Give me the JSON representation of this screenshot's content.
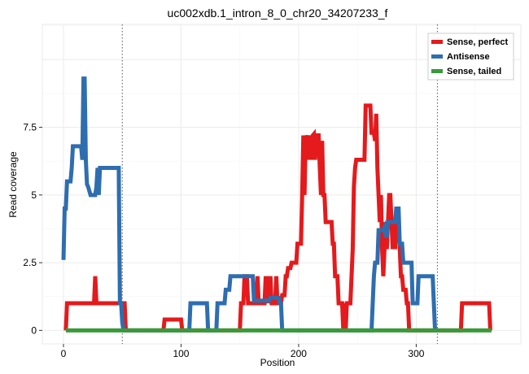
{
  "chart_data": {
    "type": "line",
    "title": "uc002xdb.1_intron_8_0_chr20_34207233_f",
    "xlabel": "Position",
    "ylabel": "Read coverage",
    "xlim": [
      -18,
      389
    ],
    "ylim": [
      -0.5,
      11.3
    ],
    "xticks": [
      0,
      100,
      200,
      300
    ],
    "yticks": [
      0,
      2.5,
      5,
      7.5
    ],
    "ytick_labels": [
      "0",
      "2.5",
      "5",
      "7.5"
    ],
    "grid": true,
    "legend_position": "top-right",
    "vlines": [
      50,
      318
    ],
    "series": [
      {
        "name": "Sense, perfect",
        "color": "#e41a1c",
        "points": [
          [
            2,
            0
          ],
          [
            3,
            1
          ],
          [
            26,
            1
          ],
          [
            27,
            2
          ],
          [
            28,
            1
          ],
          [
            52,
            1
          ],
          [
            53,
            0
          ],
          [
            85,
            0
          ],
          [
            86,
            0.4
          ],
          [
            100,
            0.4
          ],
          [
            101,
            0
          ],
          [
            150,
            0
          ],
          [
            151,
            1
          ],
          [
            153,
            1
          ],
          [
            154,
            2
          ],
          [
            156,
            2
          ],
          [
            157,
            1
          ],
          [
            164,
            1
          ],
          [
            165,
            2
          ],
          [
            166,
            1
          ],
          [
            170,
            1
          ],
          [
            171,
            1
          ],
          [
            172,
            2
          ],
          [
            173,
            1
          ],
          [
            174,
            2
          ],
          [
            175,
            1
          ],
          [
            176,
            2
          ],
          [
            177,
            1
          ],
          [
            180,
            1
          ],
          [
            181,
            2
          ],
          [
            182,
            1
          ],
          [
            185,
            1
          ],
          [
            186,
            1.3
          ],
          [
            188,
            1.3
          ],
          [
            189,
            2
          ],
          [
            190,
            2
          ],
          [
            191,
            2.3
          ],
          [
            193,
            2.3
          ],
          [
            194,
            2.5
          ],
          [
            198,
            2.5
          ],
          [
            199,
            3.2
          ],
          [
            202,
            3.2
          ],
          [
            203,
            5
          ],
          [
            204,
            7.2
          ],
          [
            205,
            5
          ],
          [
            206,
            7.2
          ],
          [
            207,
            7
          ],
          [
            208,
            7.2
          ],
          [
            209,
            6.3
          ],
          [
            210,
            7.2
          ],
          [
            211,
            6.3
          ],
          [
            212,
            7.2
          ],
          [
            213,
            7.25
          ],
          [
            214,
            6.3
          ],
          [
            215,
            7.2
          ],
          [
            217,
            7.2
          ],
          [
            218,
            6
          ],
          [
            219,
            5
          ],
          [
            220,
            7
          ],
          [
            221,
            5
          ],
          [
            222,
            5
          ],
          [
            223,
            4
          ],
          [
            228,
            4
          ],
          [
            229,
            3.2
          ],
          [
            230,
            3.2
          ],
          [
            231,
            2
          ],
          [
            233,
            2
          ],
          [
            234,
            1
          ],
          [
            237,
            1
          ],
          [
            238,
            0
          ],
          [
            239,
            1
          ],
          [
            240,
            0
          ],
          [
            241,
            1
          ],
          [
            244,
            1
          ],
          [
            245,
            2
          ],
          [
            246,
            3
          ],
          [
            247,
            5.3
          ],
          [
            248,
            6
          ],
          [
            249,
            6.3
          ],
          [
            256,
            6.3
          ],
          [
            257,
            8.3
          ],
          [
            261,
            8.3
          ],
          [
            262,
            7.3
          ],
          [
            264,
            7.3
          ],
          [
            265,
            7
          ],
          [
            266,
            8
          ],
          [
            267,
            6
          ],
          [
            268,
            5
          ],
          [
            269,
            4
          ],
          [
            270,
            5
          ],
          [
            271,
            3
          ],
          [
            272,
            2
          ],
          [
            273,
            3
          ],
          [
            274,
            4
          ],
          [
            275,
            3
          ],
          [
            276,
            4
          ],
          [
            277,
            5
          ],
          [
            278,
            5
          ],
          [
            279,
            4
          ],
          [
            280,
            3
          ],
          [
            281,
            4
          ],
          [
            282,
            3
          ],
          [
            283,
            4
          ],
          [
            285,
            4
          ],
          [
            286,
            3
          ],
          [
            287,
            2
          ],
          [
            288,
            2
          ],
          [
            289,
            1.5
          ],
          [
            291,
            1.5
          ],
          [
            292,
            1
          ],
          [
            293,
            1
          ],
          [
            294,
            0
          ],
          [
            338,
            0
          ],
          [
            339,
            1
          ],
          [
            362,
            1
          ],
          [
            363,
            0
          ]
        ]
      },
      {
        "name": "Antisense",
        "color": "#2e6eb0",
        "points": [
          [
            0,
            2.6
          ],
          [
            1,
            4.5
          ],
          [
            2,
            4.5
          ],
          [
            3,
            5.5
          ],
          [
            6,
            5.5
          ],
          [
            7,
            6
          ],
          [
            8,
            6.8
          ],
          [
            15,
            6.8
          ],
          [
            16,
            6.3
          ],
          [
            17,
            9.3
          ],
          [
            18,
            9.3
          ],
          [
            19,
            6.3
          ],
          [
            20,
            5.4
          ],
          [
            21,
            5.3
          ],
          [
            23,
            5
          ],
          [
            27,
            5
          ],
          [
            28,
            5.3
          ],
          [
            29,
            6
          ],
          [
            30,
            5
          ],
          [
            31,
            6
          ],
          [
            47,
            6
          ],
          [
            48,
            1
          ],
          [
            49,
            1
          ],
          [
            50,
            0.3
          ],
          [
            51,
            0
          ],
          [
            107,
            0
          ],
          [
            108,
            1
          ],
          [
            122,
            1
          ],
          [
            123,
            0
          ],
          [
            130,
            0
          ],
          [
            131,
            1
          ],
          [
            137,
            1
          ],
          [
            138,
            1.5
          ],
          [
            140,
            1.5
          ],
          [
            141,
            1.5
          ],
          [
            142,
            2
          ],
          [
            145,
            2
          ],
          [
            146,
            2
          ],
          [
            161,
            2
          ],
          [
            162,
            1.1
          ],
          [
            175,
            1.1
          ],
          [
            176,
            1.2
          ],
          [
            183,
            1.2
          ],
          [
            184,
            1
          ],
          [
            185,
            1
          ],
          [
            186,
            0
          ],
          [
            262,
            0
          ],
          [
            263,
            1
          ],
          [
            264,
            2
          ],
          [
            265,
            2.5
          ],
          [
            267,
            2.5
          ],
          [
            268,
            3.7
          ],
          [
            272,
            3.7
          ],
          [
            273,
            3.8
          ],
          [
            274,
            3.5
          ],
          [
            275,
            3.5
          ],
          [
            276,
            4
          ],
          [
            282,
            4
          ],
          [
            283,
            4.5
          ],
          [
            285,
            4.5
          ],
          [
            286,
            3.2
          ],
          [
            288,
            3.2
          ],
          [
            289,
            2.5
          ],
          [
            296,
            2.5
          ],
          [
            297,
            1
          ],
          [
            301,
            1
          ],
          [
            302,
            2
          ],
          [
            314,
            2
          ],
          [
            315,
            1
          ],
          [
            316,
            0
          ],
          [
            318,
            0
          ]
        ]
      },
      {
        "name": "Sense, tailed",
        "color": "#3a9a3a",
        "points": [
          [
            2,
            0
          ],
          [
            364,
            0
          ]
        ]
      }
    ]
  }
}
